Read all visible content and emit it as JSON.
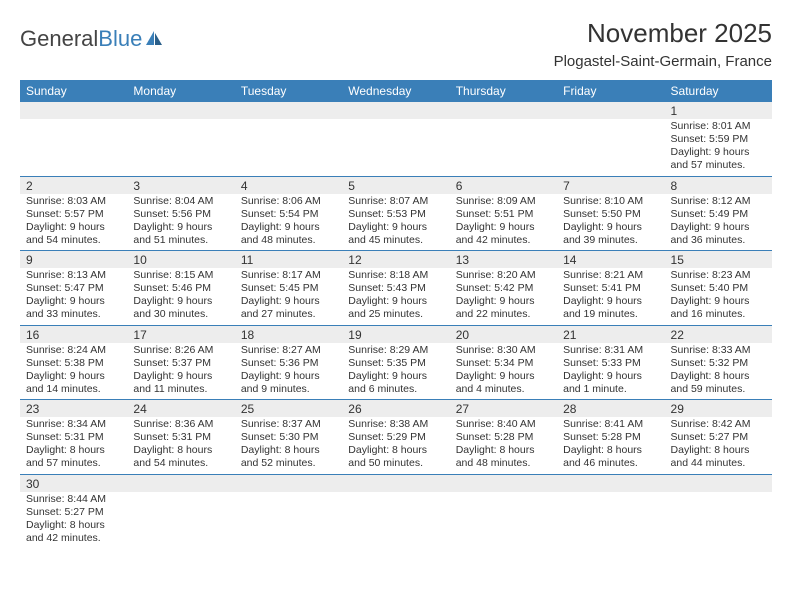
{
  "logo": {
    "text1": "General",
    "text2": "Blue"
  },
  "title": "November 2025",
  "location": "Plogastel-Saint-Germain, France",
  "colors": {
    "header_bg": "#3a7fb8",
    "header_text": "#ffffff",
    "daynum_bg": "#ededed",
    "border": "#3a7fb8",
    "text": "#333333",
    "logo_dark": "#444444",
    "logo_blue": "#3a7fb8"
  },
  "day_headers": [
    "Sunday",
    "Monday",
    "Tuesday",
    "Wednesday",
    "Thursday",
    "Friday",
    "Saturday"
  ],
  "weeks": [
    [
      null,
      null,
      null,
      null,
      null,
      null,
      {
        "n": "1",
        "sr": "8:01 AM",
        "ss": "5:59 PM",
        "dl": "9 hours and 57 minutes."
      }
    ],
    [
      {
        "n": "2",
        "sr": "8:03 AM",
        "ss": "5:57 PM",
        "dl": "9 hours and 54 minutes."
      },
      {
        "n": "3",
        "sr": "8:04 AM",
        "ss": "5:56 PM",
        "dl": "9 hours and 51 minutes."
      },
      {
        "n": "4",
        "sr": "8:06 AM",
        "ss": "5:54 PM",
        "dl": "9 hours and 48 minutes."
      },
      {
        "n": "5",
        "sr": "8:07 AM",
        "ss": "5:53 PM",
        "dl": "9 hours and 45 minutes."
      },
      {
        "n": "6",
        "sr": "8:09 AM",
        "ss": "5:51 PM",
        "dl": "9 hours and 42 minutes."
      },
      {
        "n": "7",
        "sr": "8:10 AM",
        "ss": "5:50 PM",
        "dl": "9 hours and 39 minutes."
      },
      {
        "n": "8",
        "sr": "8:12 AM",
        "ss": "5:49 PM",
        "dl": "9 hours and 36 minutes."
      }
    ],
    [
      {
        "n": "9",
        "sr": "8:13 AM",
        "ss": "5:47 PM",
        "dl": "9 hours and 33 minutes."
      },
      {
        "n": "10",
        "sr": "8:15 AM",
        "ss": "5:46 PM",
        "dl": "9 hours and 30 minutes."
      },
      {
        "n": "11",
        "sr": "8:17 AM",
        "ss": "5:45 PM",
        "dl": "9 hours and 27 minutes."
      },
      {
        "n": "12",
        "sr": "8:18 AM",
        "ss": "5:43 PM",
        "dl": "9 hours and 25 minutes."
      },
      {
        "n": "13",
        "sr": "8:20 AM",
        "ss": "5:42 PM",
        "dl": "9 hours and 22 minutes."
      },
      {
        "n": "14",
        "sr": "8:21 AM",
        "ss": "5:41 PM",
        "dl": "9 hours and 19 minutes."
      },
      {
        "n": "15",
        "sr": "8:23 AM",
        "ss": "5:40 PM",
        "dl": "9 hours and 16 minutes."
      }
    ],
    [
      {
        "n": "16",
        "sr": "8:24 AM",
        "ss": "5:38 PM",
        "dl": "9 hours and 14 minutes."
      },
      {
        "n": "17",
        "sr": "8:26 AM",
        "ss": "5:37 PM",
        "dl": "9 hours and 11 minutes."
      },
      {
        "n": "18",
        "sr": "8:27 AM",
        "ss": "5:36 PM",
        "dl": "9 hours and 9 minutes."
      },
      {
        "n": "19",
        "sr": "8:29 AM",
        "ss": "5:35 PM",
        "dl": "9 hours and 6 minutes."
      },
      {
        "n": "20",
        "sr": "8:30 AM",
        "ss": "5:34 PM",
        "dl": "9 hours and 4 minutes."
      },
      {
        "n": "21",
        "sr": "8:31 AM",
        "ss": "5:33 PM",
        "dl": "9 hours and 1 minute."
      },
      {
        "n": "22",
        "sr": "8:33 AM",
        "ss": "5:32 PM",
        "dl": "8 hours and 59 minutes."
      }
    ],
    [
      {
        "n": "23",
        "sr": "8:34 AM",
        "ss": "5:31 PM",
        "dl": "8 hours and 57 minutes."
      },
      {
        "n": "24",
        "sr": "8:36 AM",
        "ss": "5:31 PM",
        "dl": "8 hours and 54 minutes."
      },
      {
        "n": "25",
        "sr": "8:37 AM",
        "ss": "5:30 PM",
        "dl": "8 hours and 52 minutes."
      },
      {
        "n": "26",
        "sr": "8:38 AM",
        "ss": "5:29 PM",
        "dl": "8 hours and 50 minutes."
      },
      {
        "n": "27",
        "sr": "8:40 AM",
        "ss": "5:28 PM",
        "dl": "8 hours and 48 minutes."
      },
      {
        "n": "28",
        "sr": "8:41 AM",
        "ss": "5:28 PM",
        "dl": "8 hours and 46 minutes."
      },
      {
        "n": "29",
        "sr": "8:42 AM",
        "ss": "5:27 PM",
        "dl": "8 hours and 44 minutes."
      }
    ],
    [
      {
        "n": "30",
        "sr": "8:44 AM",
        "ss": "5:27 PM",
        "dl": "8 hours and 42 minutes."
      },
      null,
      null,
      null,
      null,
      null,
      null
    ]
  ],
  "labels": {
    "sunrise": "Sunrise: ",
    "sunset": "Sunset: ",
    "daylight": "Daylight: "
  }
}
